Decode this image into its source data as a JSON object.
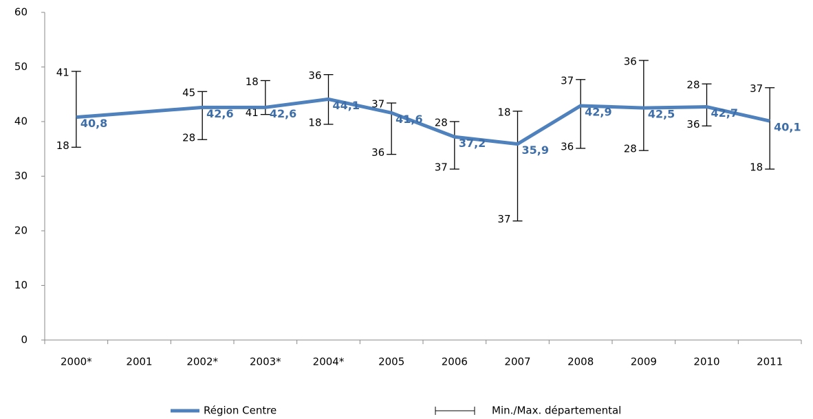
{
  "chart_data": {
    "type": "line",
    "categories": [
      "2000*",
      "2001",
      "2002*",
      "2003*",
      "2004*",
      "2005",
      "2006",
      "2007",
      "2008",
      "2009",
      "2010",
      "2011"
    ],
    "series": [
      {
        "name": "Région Centre",
        "color": "#4f81bd",
        "values": [
          40.8,
          41.7,
          42.6,
          42.6,
          44.1,
          41.6,
          37.2,
          35.9,
          42.9,
          42.5,
          42.7,
          40.1
        ],
        "value_labels": [
          "40,8",
          null,
          "42,6",
          "42,6",
          "44,1",
          "41,6",
          "37,2",
          "35,9",
          "42,9",
          "42,5",
          "42,7",
          "40,1"
        ]
      }
    ],
    "range": {
      "name": "Min./Max. départemental",
      "max": [
        49.2,
        null,
        45.5,
        47.5,
        48.6,
        43.4,
        40.0,
        41.9,
        47.7,
        51.2,
        46.9,
        46.2
      ],
      "min": [
        35.3,
        null,
        36.7,
        41.3,
        39.5,
        34.0,
        31.3,
        21.8,
        35.1,
        34.7,
        39.2,
        31.3
      ],
      "max_labels": [
        "41",
        null,
        "45",
        "18",
        "36",
        "37",
        "28",
        "18",
        "37",
        "36",
        "28",
        "37"
      ],
      "min_labels": [
        "18",
        null,
        "28",
        "41",
        "18",
        "36",
        "37",
        "37",
        "36",
        "28",
        "36",
        "18"
      ]
    },
    "ylim": [
      0,
      60
    ],
    "yticks": [
      0,
      10,
      20,
      30,
      40,
      50,
      60
    ]
  }
}
